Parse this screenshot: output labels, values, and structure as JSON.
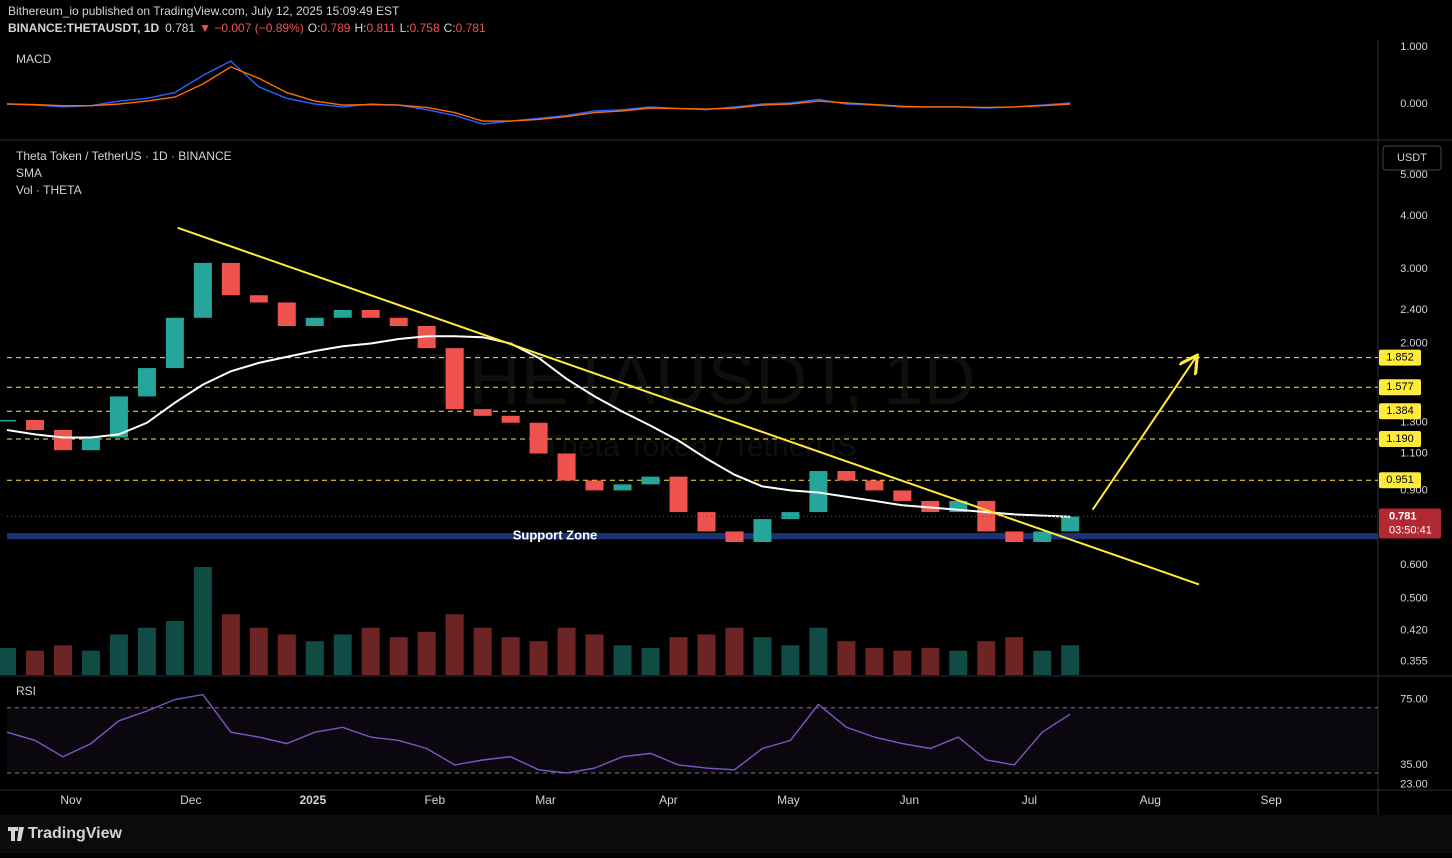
{
  "header": {
    "publisher": "Bithereum_io published on TradingView.com, July 12, 2025 15:09:49 EST",
    "symbol": "BINANCE:THETAUSDT, 1D",
    "last": "0.781",
    "change": "▼ −0.007 (−0.89%)",
    "ohlc": [
      {
        "label": "O:",
        "value": "0.789"
      },
      {
        "label": "H:",
        "value": "0.811"
      },
      {
        "label": "L:",
        "value": "0.758"
      },
      {
        "label": "C:",
        "value": "0.781"
      }
    ]
  },
  "footer": {
    "brand": "TradingView"
  },
  "x_axis": {
    "xlim": [
      0,
      49
    ],
    "xticks": [
      {
        "value": 2.29,
        "label": "Nov"
      },
      {
        "value": 6.57,
        "label": "Dec"
      },
      {
        "value": 10.93,
        "label": "2025"
      },
      {
        "value": 15.29,
        "label": "Feb"
      },
      {
        "value": 19.25,
        "label": "Mar"
      },
      {
        "value": 23.64,
        "label": "Apr"
      },
      {
        "value": 27.93,
        "label": "May"
      },
      {
        "value": 32.25,
        "label": "Jun"
      },
      {
        "value": 36.54,
        "label": "Jul"
      },
      {
        "value": 40.86,
        "label": "Aug"
      },
      {
        "value": 45.18,
        "label": "Sep"
      }
    ]
  },
  "chart_data": [
    {
      "type": "line",
      "title": "MACD",
      "ylim": [
        -0.63,
        1.12
      ],
      "yticks": [
        {
          "value": 1,
          "label": "1.000"
        },
        {
          "value": 0,
          "label": "0.000"
        }
      ],
      "series": [
        {
          "color": "#2962ff",
          "values": [
            0.0,
            -0.02,
            -0.05,
            -0.03,
            0.05,
            0.1,
            0.2,
            0.5,
            0.75,
            0.3,
            0.1,
            0.0,
            -0.05,
            0.0,
            -0.02,
            -0.1,
            -0.2,
            -0.35,
            -0.3,
            -0.25,
            -0.2,
            -0.12,
            -0.1,
            -0.05,
            -0.08,
            -0.1,
            -0.05,
            0.0,
            0.02,
            0.08,
            0.0,
            -0.02,
            -0.05,
            -0.05,
            -0.05,
            -0.07,
            -0.05,
            -0.02,
            0.02
          ]
        },
        {
          "color": "#ff6d00",
          "values": [
            0.0,
            -0.01,
            -0.03,
            -0.03,
            0.0,
            0.05,
            0.12,
            0.35,
            0.65,
            0.45,
            0.2,
            0.05,
            -0.02,
            -0.01,
            -0.02,
            -0.06,
            -0.15,
            -0.3,
            -0.3,
            -0.27,
            -0.22,
            -0.15,
            -0.12,
            -0.07,
            -0.08,
            -0.09,
            -0.07,
            -0.02,
            0.0,
            0.05,
            0.02,
            -0.01,
            -0.04,
            -0.05,
            -0.05,
            -0.06,
            -0.05,
            -0.03,
            0.0
          ]
        }
      ]
    },
    {
      "type": "candlestick",
      "title": "Theta Token / TetherUS · 1D · BINANCE",
      "indicators": [
        "SMA",
        "Vol · THETA"
      ],
      "currency": "USDT",
      "log_scale": true,
      "color_up": "#26a69a",
      "color_down": "#ef5350",
      "ylim": [
        0.33,
        5.98
      ],
      "yticks": [
        {
          "value": 5,
          "label": "5.000"
        },
        {
          "value": 4,
          "label": "4.000"
        },
        {
          "value": 3,
          "label": "3.000"
        },
        {
          "value": 2.4,
          "label": "2.400"
        },
        {
          "value": 2,
          "label": "2.000"
        },
        {
          "value": 1.3,
          "label": "1.300"
        },
        {
          "value": 1.1,
          "label": "1.100"
        },
        {
          "value": 0.9,
          "label": "0.900"
        },
        {
          "value": 0.6,
          "label": "0.600"
        },
        {
          "value": 0.5,
          "label": "0.500"
        },
        {
          "value": 0.42,
          "label": "0.420"
        },
        {
          "value": 0.355,
          "label": "0.355"
        }
      ],
      "values": [
        1.32,
        1.25,
        1.12,
        1.2,
        1.5,
        1.75,
        2.3,
        3.1,
        2.6,
        2.5,
        2.2,
        2.3,
        2.4,
        2.3,
        2.2,
        1.95,
        1.4,
        1.35,
        1.3,
        1.1,
        0.95,
        0.9,
        0.93,
        0.97,
        0.8,
        0.72,
        0.68,
        0.77,
        0.8,
        1.0,
        0.95,
        0.9,
        0.85,
        0.8,
        0.85,
        0.72,
        0.68,
        0.72,
        0.781
      ],
      "sma": {
        "color": "#ffffff",
        "values": [
          1.25,
          1.22,
          1.2,
          1.2,
          1.22,
          1.3,
          1.45,
          1.6,
          1.72,
          1.8,
          1.86,
          1.92,
          1.97,
          2.0,
          2.05,
          2.08,
          2.08,
          2.07,
          2.0,
          1.85,
          1.65,
          1.5,
          1.38,
          1.28,
          1.18,
          1.07,
          0.98,
          0.92,
          0.9,
          0.89,
          0.87,
          0.85,
          0.83,
          0.82,
          0.81,
          0.8,
          0.79,
          0.785,
          0.78
        ]
      },
      "volume": {
        "vlim": [
          0,
          100
        ],
        "values": [
          20,
          18,
          22,
          18,
          30,
          35,
          40,
          80,
          45,
          35,
          30,
          25,
          30,
          35,
          28,
          32,
          45,
          35,
          28,
          25,
          35,
          30,
          22,
          20,
          28,
          30,
          35,
          28,
          22,
          35,
          25,
          20,
          18,
          20,
          18,
          25,
          28,
          18,
          22
        ]
      },
      "levels": {
        "color": "#ffeb3b",
        "items": [
          {
            "value": 1.852,
            "label": "1.852"
          },
          {
            "value": 1.577,
            "label": "1.577"
          },
          {
            "value": 1.384,
            "label": "1.384"
          },
          {
            "value": 1.19,
            "label": "1.190"
          },
          {
            "value": 0.951,
            "label": "0.951"
          }
        ]
      },
      "last": {
        "value": 0.781,
        "label": "0.781",
        "countdown": "03:50:41",
        "color": "#b22833"
      },
      "support_zone": {
        "label": "Support Zone",
        "range": [
          0.69,
          0.714
        ],
        "color": "#1e3a8a"
      },
      "trendline": {
        "color": "#ffeb3b",
        "points": [
          [
            6.1,
            3.75
          ],
          [
            42.6,
            0.54
          ]
        ]
      },
      "arrow": {
        "color": "#ffeb3b",
        "points": [
          [
            38.8,
            0.81
          ],
          [
            42.5,
            1.86
          ]
        ]
      },
      "watermark": "THETAUSDT, 1D",
      "watermark_sub": "Theta Token / TetherUS"
    },
    {
      "type": "line",
      "title": "RSI",
      "ylim": [
        19.6,
        88.8
      ],
      "yticks": [
        {
          "value": 75,
          "label": "75.00"
        },
        {
          "value": 35,
          "label": "35.00"
        },
        {
          "value": 23,
          "label": "23.00"
        }
      ],
      "bands": [
        30,
        70
      ],
      "series": [
        {
          "color": "#7e57c2",
          "values": [
            55,
            50,
            40,
            48,
            62,
            68,
            75,
            78,
            55,
            52,
            48,
            55,
            58,
            52,
            50,
            45,
            35,
            38,
            40,
            32,
            30,
            33,
            40,
            42,
            35,
            33,
            32,
            45,
            50,
            72,
            58,
            52,
            48,
            45,
            52,
            38,
            35,
            55,
            66
          ]
        }
      ]
    }
  ]
}
